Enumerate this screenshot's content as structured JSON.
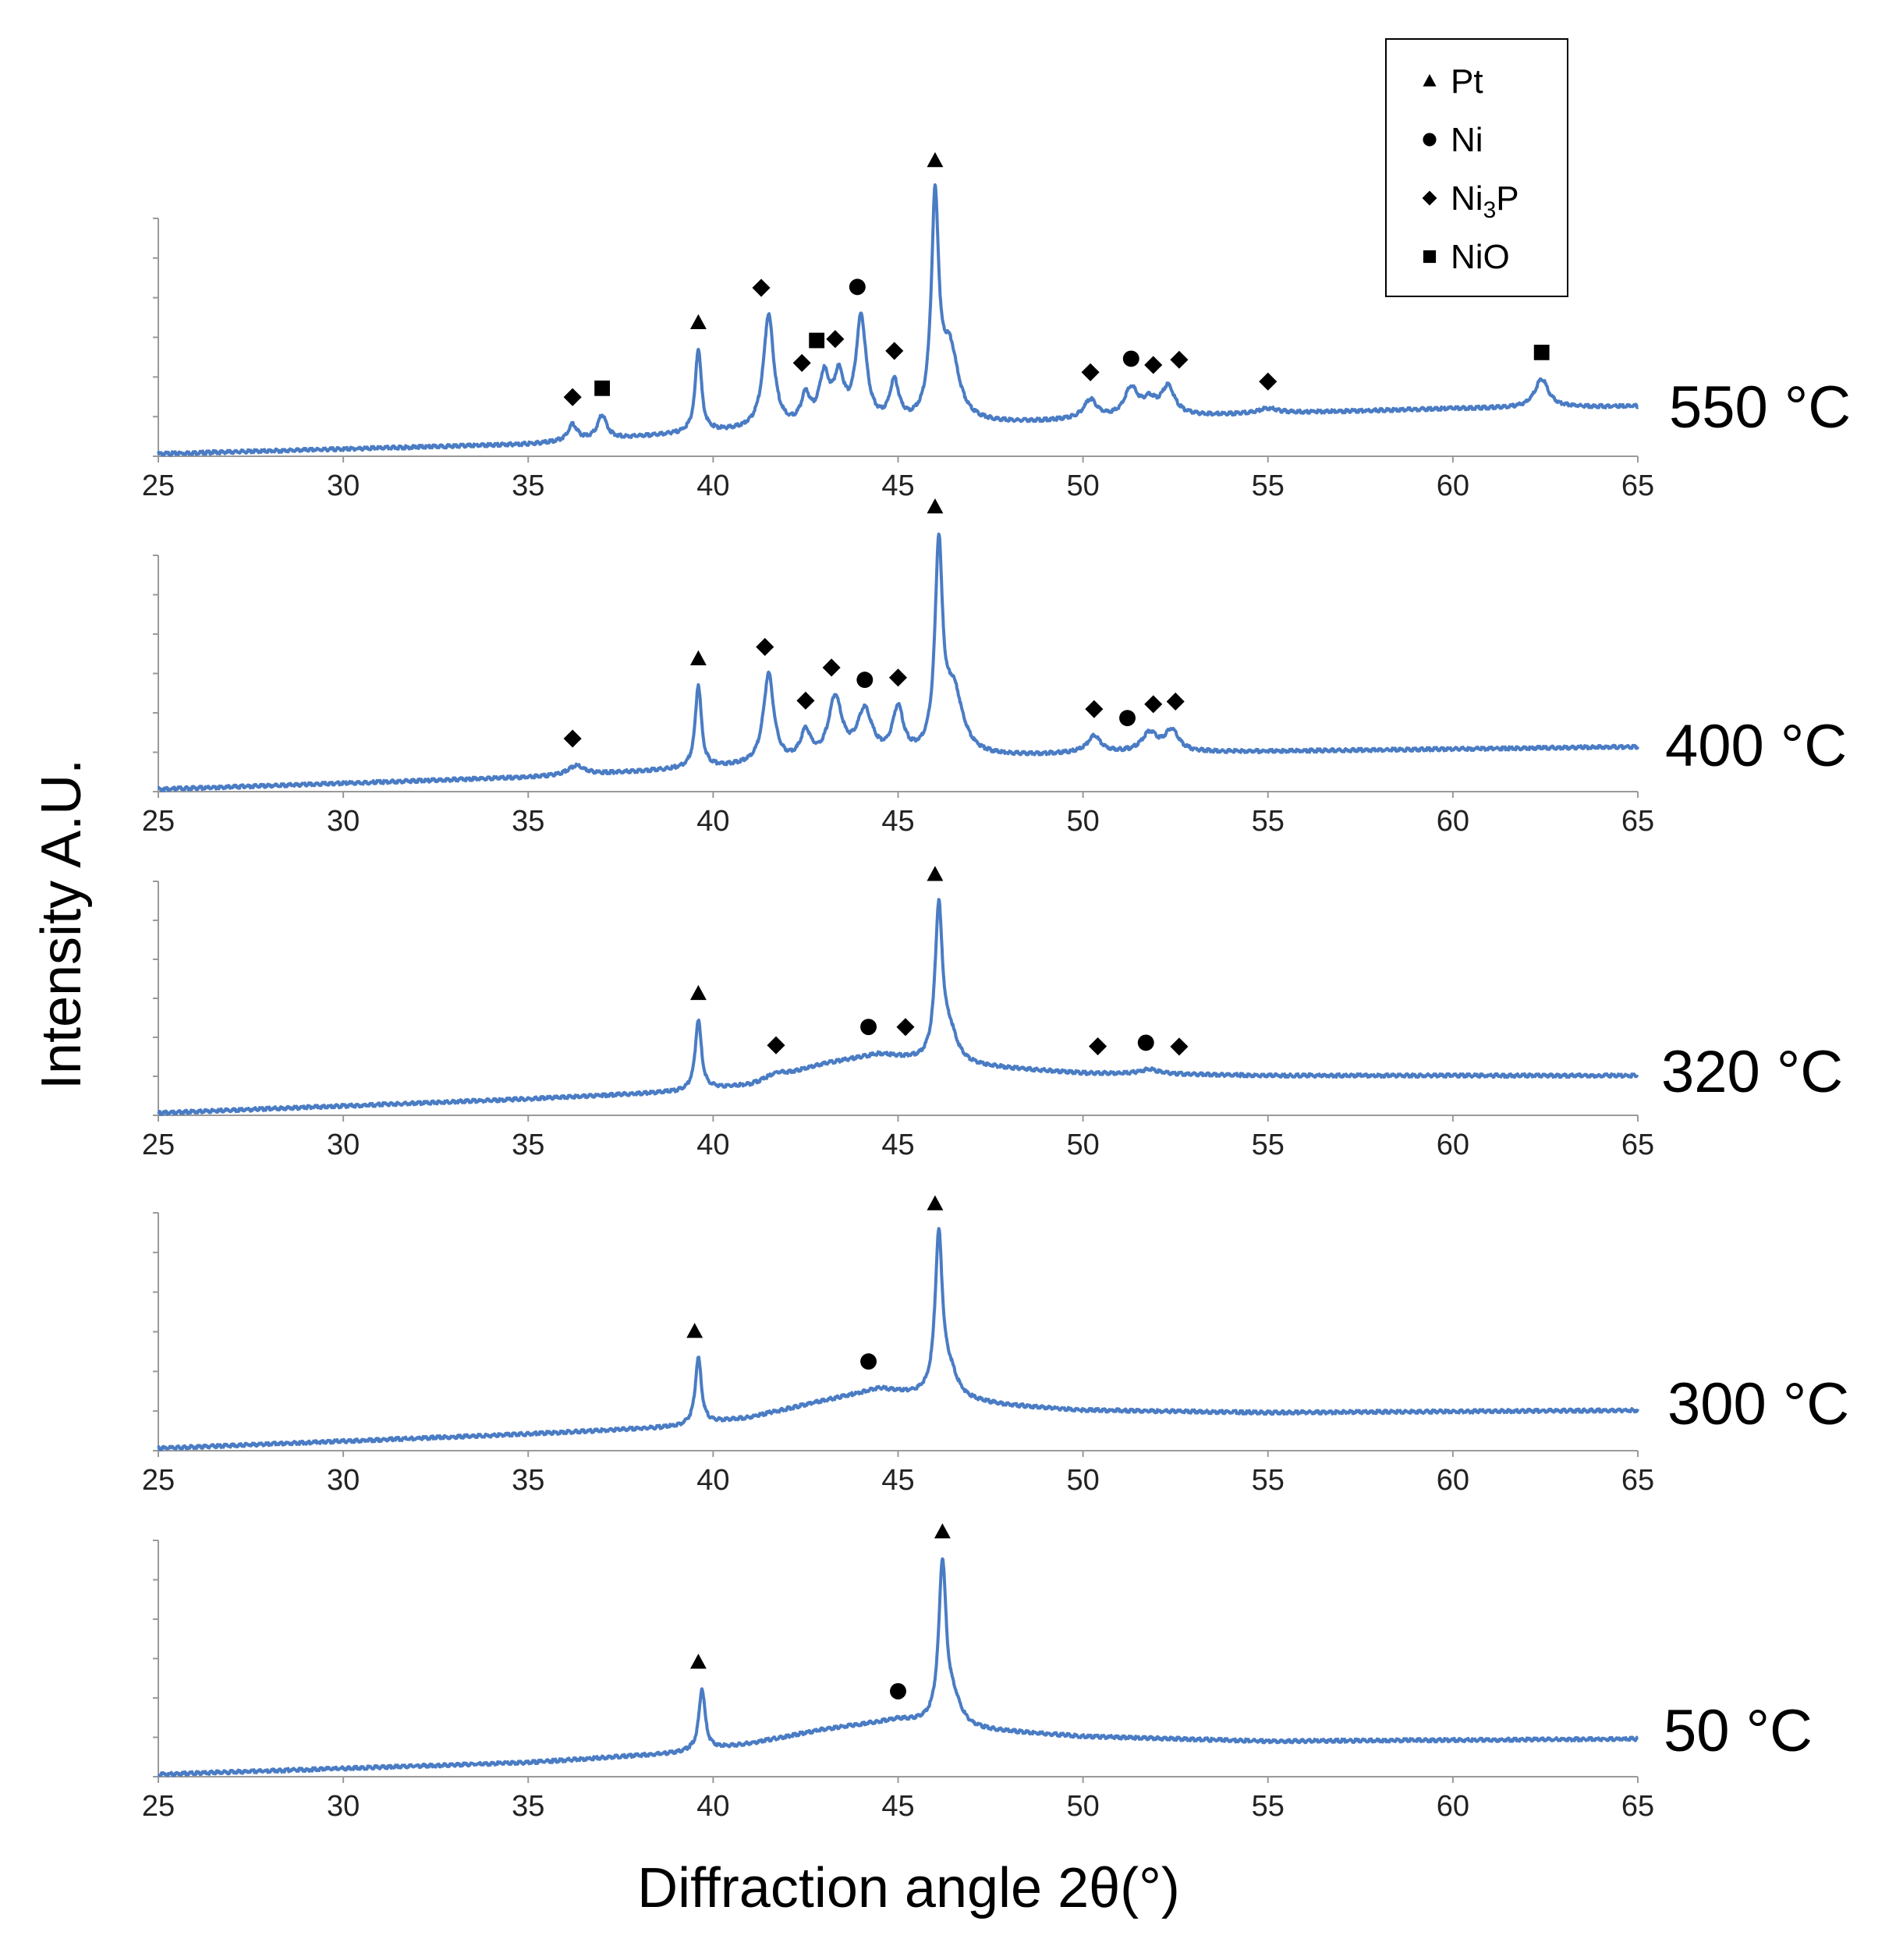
{
  "chart_data": {
    "type": "line",
    "title": "",
    "xlabel": "Diffraction angle 2θ(°)",
    "ylabel": "Intensity A.U.",
    "xlim": [
      25,
      65
    ],
    "xticks": [
      25,
      30,
      35,
      40,
      45,
      50,
      55,
      60,
      65
    ],
    "ylim": [
      0,
      100
    ],
    "series_color": "#4a7cc4",
    "legend": {
      "position": "top-right",
      "entries": [
        {
          "marker": "triangle",
          "label": "Pt"
        },
        {
          "marker": "circle",
          "label": "Ni"
        },
        {
          "marker": "diamond",
          "label": "Ni",
          "label_sub": "3",
          "label_after": "P"
        },
        {
          "marker": "square",
          "label": "NiO"
        }
      ]
    },
    "panels": [
      {
        "label": "550 °C",
        "baseline": [
          [
            25,
            1
          ],
          [
            35,
            5
          ],
          [
            40,
            10
          ],
          [
            45,
            12
          ],
          [
            50,
            15
          ],
          [
            55,
            18
          ],
          [
            60,
            20
          ],
          [
            65,
            21
          ]
        ],
        "peaks": [
          {
            "x": 36.2,
            "h": 7,
            "w": 0.15
          },
          {
            "x": 37.0,
            "h": 10,
            "w": 0.15
          },
          {
            "x": 39.6,
            "h": 35,
            "w": 0.1
          },
          {
            "x": 41.5,
            "h": 48,
            "w": 0.17
          },
          {
            "x": 42.5,
            "h": 12,
            "w": 0.15
          },
          {
            "x": 43.0,
            "h": 20,
            "w": 0.17
          },
          {
            "x": 43.4,
            "h": 19,
            "w": 0.17
          },
          {
            "x": 44.0,
            "h": 45,
            "w": 0.17
          },
          {
            "x": 44.9,
            "h": 17,
            "w": 0.15
          },
          {
            "x": 46.0,
            "h": 90,
            "w": 0.12
          },
          {
            "x": 46.4,
            "h": 30,
            "w": 0.28
          },
          {
            "x": 50.2,
            "h": 8,
            "w": 0.22
          },
          {
            "x": 51.3,
            "h": 12,
            "w": 0.22
          },
          {
            "x": 51.8,
            "h": 6,
            "w": 0.22
          },
          {
            "x": 52.3,
            "h": 12,
            "w": 0.22
          },
          {
            "x": 55.0,
            "h": 2,
            "w": 0.3
          },
          {
            "x": 62.4,
            "h": 12,
            "w": 0.22
          }
        ],
        "markers": [
          {
            "x": 36.2,
            "type": "diamond"
          },
          {
            "x": 37.0,
            "type": "square"
          },
          {
            "x": 39.6,
            "type": "triangle"
          },
          {
            "x": 41.3,
            "type": "diamond"
          },
          {
            "x": 42.4,
            "type": "diamond"
          },
          {
            "x": 42.8,
            "type": "square"
          },
          {
            "x": 43.3,
            "type": "diamond"
          },
          {
            "x": 43.9,
            "type": "circle"
          },
          {
            "x": 44.9,
            "type": "diamond"
          },
          {
            "x": 46.0,
            "type": "triangle"
          },
          {
            "x": 50.2,
            "type": "diamond"
          },
          {
            "x": 51.3,
            "type": "circle"
          },
          {
            "x": 51.9,
            "type": "diamond"
          },
          {
            "x": 52.6,
            "type": "diamond"
          },
          {
            "x": 55.0,
            "type": "diamond"
          },
          {
            "x": 62.4,
            "type": "square"
          }
        ]
      },
      {
        "label": "400 °C",
        "baseline": [
          [
            25,
            1
          ],
          [
            35,
            6
          ],
          [
            40,
            10
          ],
          [
            45,
            13
          ],
          [
            50,
            16
          ],
          [
            55,
            17
          ],
          [
            60,
            18
          ],
          [
            65,
            19
          ]
        ],
        "peaks": [
          {
            "x": 36.3,
            "h": 4,
            "w": 0.25
          },
          {
            "x": 39.6,
            "h": 35,
            "w": 0.1
          },
          {
            "x": 41.5,
            "h": 38,
            "w": 0.17
          },
          {
            "x": 42.5,
            "h": 12,
            "w": 0.17
          },
          {
            "x": 43.3,
            "h": 26,
            "w": 0.22
          },
          {
            "x": 44.1,
            "h": 20,
            "w": 0.25
          },
          {
            "x": 45.0,
            "h": 20,
            "w": 0.18
          },
          {
            "x": 46.1,
            "h": 85,
            "w": 0.12
          },
          {
            "x": 46.5,
            "h": 27,
            "w": 0.3
          },
          {
            "x": 50.3,
            "h": 7,
            "w": 0.22
          },
          {
            "x": 51.8,
            "h": 8,
            "w": 0.25
          },
          {
            "x": 52.4,
            "h": 9,
            "w": 0.22
          }
        ],
        "markers": [
          {
            "x": 36.2,
            "type": "diamond"
          },
          {
            "x": 39.6,
            "type": "triangle"
          },
          {
            "x": 41.4,
            "type": "diamond"
          },
          {
            "x": 42.5,
            "type": "diamond"
          },
          {
            "x": 43.2,
            "type": "diamond"
          },
          {
            "x": 44.1,
            "type": "circle"
          },
          {
            "x": 45.0,
            "type": "diamond"
          },
          {
            "x": 46.0,
            "type": "triangle"
          },
          {
            "x": 50.3,
            "type": "diamond"
          },
          {
            "x": 51.2,
            "type": "circle"
          },
          {
            "x": 51.9,
            "type": "diamond"
          },
          {
            "x": 52.5,
            "type": "diamond"
          }
        ]
      },
      {
        "label": "320 °C",
        "baseline": [
          [
            25,
            1
          ],
          [
            35,
            7
          ],
          [
            39,
            10
          ],
          [
            41,
            13
          ],
          [
            43,
            22
          ],
          [
            44.5,
            26
          ],
          [
            46,
            22
          ],
          [
            48,
            20
          ],
          [
            50,
            18
          ],
          [
            55,
            17
          ],
          [
            65,
            17
          ]
        ],
        "peaks": [
          {
            "x": 39.6,
            "h": 30,
            "w": 0.1
          },
          {
            "x": 41.7,
            "h": 2,
            "w": 0.3
          },
          {
            "x": 46.1,
            "h": 65,
            "w": 0.12
          },
          {
            "x": 46.4,
            "h": 12,
            "w": 0.25
          },
          {
            "x": 51.8,
            "h": 2,
            "w": 0.3
          }
        ],
        "markers": [
          {
            "x": 39.6,
            "type": "triangle"
          },
          {
            "x": 41.7,
            "type": "diamond"
          },
          {
            "x": 44.2,
            "type": "circle"
          },
          {
            "x": 45.2,
            "type": "diamond"
          },
          {
            "x": 46.0,
            "type": "triangle"
          },
          {
            "x": 50.4,
            "type": "diamond"
          },
          {
            "x": 51.7,
            "type": "circle"
          },
          {
            "x": 52.6,
            "type": "diamond"
          }
        ]
      },
      {
        "label": "300 °C",
        "baseline": [
          [
            25,
            1
          ],
          [
            35,
            7
          ],
          [
            39,
            10
          ],
          [
            41,
            14
          ],
          [
            43,
            21
          ],
          [
            44.5,
            26
          ],
          [
            46,
            22
          ],
          [
            48,
            19
          ],
          [
            50,
            17
          ],
          [
            55,
            16
          ],
          [
            65,
            17
          ]
        ],
        "peaks": [
          {
            "x": 39.6,
            "h": 28,
            "w": 0.1
          },
          {
            "x": 46.1,
            "h": 67,
            "w": 0.12
          },
          {
            "x": 46.4,
            "h": 10,
            "w": 0.25
          }
        ],
        "markers": [
          {
            "x": 39.5,
            "type": "triangle"
          },
          {
            "x": 44.2,
            "type": "circle"
          },
          {
            "x": 46.0,
            "type": "triangle"
          }
        ]
      },
      {
        "label": "50 °C",
        "baseline": [
          [
            25,
            1
          ],
          [
            35,
            6
          ],
          [
            39,
            10
          ],
          [
            41,
            14
          ],
          [
            43,
            20
          ],
          [
            45,
            24
          ],
          [
            47,
            20
          ],
          [
            50,
            17
          ],
          [
            55,
            15
          ],
          [
            65,
            16
          ]
        ],
        "peaks": [
          {
            "x": 39.7,
            "h": 26,
            "w": 0.1
          },
          {
            "x": 46.2,
            "h": 67,
            "w": 0.12
          },
          {
            "x": 46.5,
            "h": 10,
            "w": 0.25
          }
        ],
        "markers": [
          {
            "x": 39.6,
            "type": "triangle"
          },
          {
            "x": 45.0,
            "type": "circle"
          },
          {
            "x": 46.2,
            "type": "triangle"
          }
        ]
      }
    ]
  }
}
